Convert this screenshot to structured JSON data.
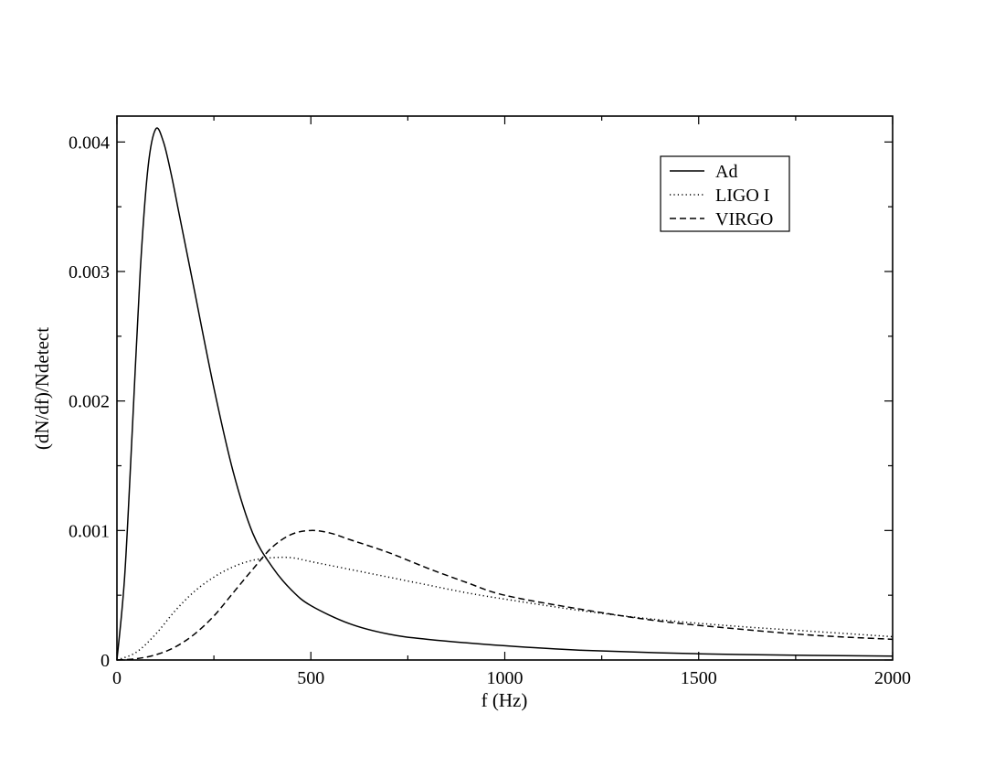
{
  "chart_data": {
    "type": "line",
    "title": "",
    "xlabel": "f (Hz)",
    "ylabel": "(dN/df)/Ndetect",
    "xlim": [
      0,
      2000
    ],
    "ylim": [
      0,
      0.0042
    ],
    "x_ticks": [
      0,
      500,
      1000,
      1500,
      2000
    ],
    "x_tick_labels": [
      "0",
      "500",
      "1000",
      "1500",
      "2000"
    ],
    "y_ticks": [
      0,
      0.001,
      0.002,
      0.003,
      0.004
    ],
    "y_tick_labels": [
      "0",
      "0.001",
      "0.002",
      "0.003",
      "0.004"
    ],
    "grid": false,
    "legend_position": "top-right",
    "series": [
      {
        "name": "Ad",
        "line_style": "solid",
        "color": "#000000",
        "x": [
          0,
          20,
          40,
          60,
          80,
          100,
          120,
          140,
          160,
          180,
          200,
          250,
          300,
          350,
          400,
          450,
          500,
          600,
          700,
          800,
          1000,
          1200,
          1500,
          1800,
          2000
        ],
        "y": [
          0,
          0.00065,
          0.0018,
          0.003,
          0.0038,
          0.0041,
          0.004,
          0.00375,
          0.00345,
          0.00315,
          0.00285,
          0.0021,
          0.00145,
          0.00098,
          0.00072,
          0.00054,
          0.00042,
          0.00028,
          0.0002,
          0.00016,
          0.00011,
          7.5e-05,
          4.8e-05,
          3.5e-05,
          3e-05
        ]
      },
      {
        "name": "LIGO I",
        "line_style": "dotted",
        "color": "#000000",
        "x": [
          0,
          50,
          100,
          150,
          200,
          250,
          300,
          350,
          400,
          450,
          500,
          600,
          700,
          800,
          900,
          1000,
          1200,
          1400,
          1600,
          1800,
          2000
        ],
        "y": [
          0,
          6e-05,
          0.0002,
          0.00038,
          0.00053,
          0.00064,
          0.00072,
          0.00077,
          0.00079,
          0.00079,
          0.00076,
          0.0007,
          0.00064,
          0.00058,
          0.00052,
          0.00047,
          0.00038,
          0.00031,
          0.00026,
          0.00022,
          0.00018
        ]
      },
      {
        "name": "VIRGO",
        "line_style": "dashed",
        "color": "#000000",
        "x": [
          0,
          50,
          100,
          150,
          200,
          250,
          300,
          350,
          400,
          450,
          500,
          550,
          600,
          700,
          800,
          900,
          1000,
          1200,
          1400,
          1600,
          1800,
          2000
        ],
        "y": [
          0,
          1e-05,
          4e-05,
          0.0001,
          0.0002,
          0.00034,
          0.00052,
          0.0007,
          0.00087,
          0.00097,
          0.001,
          0.00098,
          0.00093,
          0.00083,
          0.00071,
          0.0006,
          0.0005,
          0.00039,
          0.0003,
          0.00024,
          0.00019,
          0.00016
        ]
      }
    ]
  }
}
